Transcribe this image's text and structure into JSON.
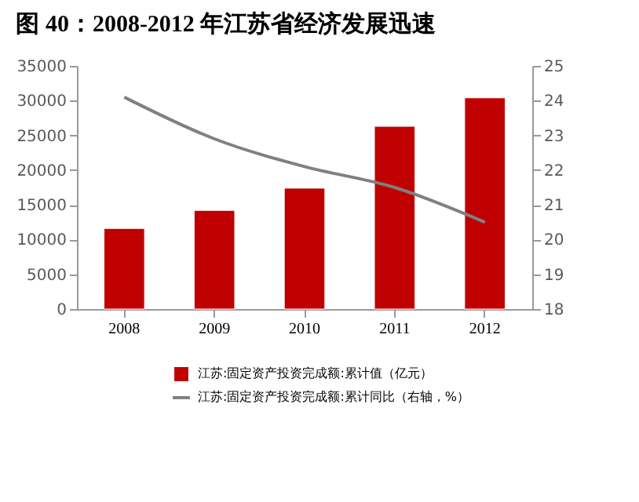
{
  "chart_data": {
    "type": "bar",
    "title": "图 40：2008-2012 年江苏省经济发展迅速",
    "categories": [
      "2008",
      "2009",
      "2010",
      "2011",
      "2012"
    ],
    "series": [
      {
        "name": "江苏:固定资产投资完成额:累计值（亿元）",
        "color": "#c00000",
        "values": [
          11600,
          14200,
          17400,
          26300,
          30400
        ]
      },
      {
        "name": "江苏:固定资产投资完成额:累计同比（右轴，%）",
        "type": "line",
        "axis": "y2",
        "color": "#808080",
        "values": [
          24.1,
          22.9,
          22.1,
          21.5,
          20.5
        ]
      }
    ],
    "ylim": [
      0,
      35000
    ],
    "yticks": [
      0,
      5000,
      10000,
      15000,
      20000,
      25000,
      30000,
      35000
    ],
    "y2lim": [
      18,
      25
    ],
    "y2ticks": [
      18,
      19,
      20,
      21,
      22,
      23,
      24,
      25
    ],
    "grid": false,
    "legend": "bottom",
    "marker": "none",
    "line_style": "solid"
  }
}
